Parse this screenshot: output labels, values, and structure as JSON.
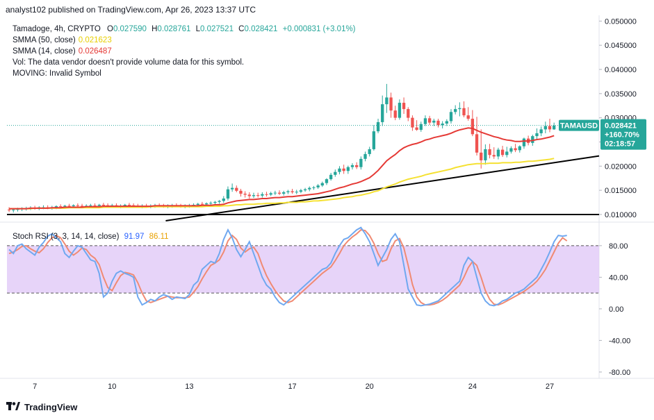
{
  "header": {
    "published": "analyst102 published on TradingView.com, Apr 26, 2023 13:37 UTC"
  },
  "legend": {
    "title": "Tamadoge, 4h, CRYPTO",
    "ohlc": {
      "open_label": "O",
      "open": "0.027590",
      "high_label": "H",
      "high": "0.028761",
      "low_label": "L",
      "low": "0.027521",
      "close_label": "C",
      "close": "0.028421",
      "change": "+0.000831 (+3.01%)"
    },
    "sma50_label": "SMMA (50, close)",
    "sma50_value": "0.021623",
    "sma14_label": "SMMA (14, close)",
    "sma14_value": "0.026487",
    "vol_text": "Vol: The data vendor doesn't provide volume data for this symbol.",
    "moving_text": "MOVING: Invalid Symbol"
  },
  "rsi_legend": {
    "label": "Stoch RSI (3, 3, 14, 14, close)",
    "k": "91.97",
    "d": "86.11"
  },
  "price_tag": {
    "symbol": "TAMAUSD",
    "price": "0.028421",
    "change": "+160.70%",
    "countdown": "02:18:57"
  },
  "footer": {
    "brand": "TradingView"
  },
  "colors": {
    "up": "#26a69a",
    "down": "#ef5350",
    "sma50": "#f5e132",
    "sma14": "#e53935",
    "k": "#6fa8f0",
    "d": "#f08a73",
    "band": "#e1c9f7"
  },
  "chart_data": [
    {
      "type": "candlestick",
      "title": "Tamadoge, 4h, CRYPTO",
      "y_ticks": [
        "0.010000",
        "0.015000",
        "0.020000",
        "0.025000",
        "0.030000",
        "0.035000",
        "0.040000",
        "0.045000",
        "0.050000"
      ],
      "ylim": [
        0.0087,
        0.0512
      ],
      "x_tick_labels": [
        "7",
        "10",
        "13",
        "17",
        "20",
        "24",
        "27"
      ],
      "x_tick_index": [
        6,
        24,
        42,
        66,
        84,
        108,
        126
      ],
      "x_count": 138,
      "last_price": 0.028421,
      "ohlc_open": [
        0.011,
        0.0109,
        0.011,
        0.0111,
        0.0112,
        0.0113,
        0.0114,
        0.0113,
        0.0115,
        0.0115,
        0.0114,
        0.0115,
        0.0117,
        0.0116,
        0.0118,
        0.0117,
        0.0119,
        0.0118,
        0.0117,
        0.0118,
        0.0119,
        0.0118,
        0.012,
        0.0119,
        0.0118,
        0.0119,
        0.0117,
        0.0118,
        0.012,
        0.0119,
        0.0118,
        0.0117,
        0.0118,
        0.0117,
        0.0118,
        0.0119,
        0.0118,
        0.0117,
        0.0118,
        0.0119,
        0.0118,
        0.0117,
        0.0118,
        0.0119,
        0.012,
        0.0122,
        0.0121,
        0.0123,
        0.0124,
        0.0126,
        0.0128,
        0.0133,
        0.0152,
        0.0155,
        0.0149,
        0.0143,
        0.0141,
        0.0138,
        0.014,
        0.0139,
        0.0142,
        0.0141,
        0.0144,
        0.0145,
        0.0143,
        0.0146,
        0.0148,
        0.0146,
        0.0147,
        0.015,
        0.0152,
        0.0155,
        0.0156,
        0.016,
        0.0165,
        0.0173,
        0.0182,
        0.0188,
        0.0195,
        0.019,
        0.0198,
        0.0202,
        0.0198,
        0.0215,
        0.0225,
        0.0235,
        0.0272,
        0.0291,
        0.0328,
        0.0342,
        0.0315,
        0.03,
        0.0331,
        0.0318,
        0.03,
        0.028,
        0.0275,
        0.0287,
        0.0299,
        0.029,
        0.0294,
        0.0285,
        0.0288,
        0.0293,
        0.0312,
        0.0318,
        0.032,
        0.0305,
        0.0298,
        0.0266,
        0.0228,
        0.0212,
        0.0235,
        0.0223,
        0.022,
        0.0234,
        0.0223,
        0.023,
        0.0237,
        0.0233,
        0.0241,
        0.0257,
        0.0248,
        0.0262,
        0.0268,
        0.0276,
        0.0283,
        0.0276
      ],
      "ohlc_high": [
        0.0115,
        0.0113,
        0.0114,
        0.0115,
        0.0116,
        0.0117,
        0.0118,
        0.0117,
        0.0119,
        0.0119,
        0.0118,
        0.0119,
        0.0121,
        0.012,
        0.0122,
        0.0121,
        0.0123,
        0.0122,
        0.0121,
        0.0122,
        0.0123,
        0.0122,
        0.0124,
        0.0123,
        0.0122,
        0.0123,
        0.0121,
        0.0122,
        0.0124,
        0.0123,
        0.0122,
        0.0121,
        0.0122,
        0.0121,
        0.0122,
        0.0123,
        0.0122,
        0.0121,
        0.0122,
        0.0123,
        0.0122,
        0.0121,
        0.0122,
        0.0123,
        0.0124,
        0.0126,
        0.0125,
        0.0127,
        0.0128,
        0.013,
        0.0138,
        0.0158,
        0.0164,
        0.016,
        0.0153,
        0.0148,
        0.0146,
        0.0145,
        0.0145,
        0.0146,
        0.0147,
        0.0147,
        0.0149,
        0.015,
        0.0149,
        0.0151,
        0.0153,
        0.0151,
        0.0153,
        0.0155,
        0.0158,
        0.0159,
        0.0163,
        0.0168,
        0.0175,
        0.0186,
        0.0193,
        0.02,
        0.0203,
        0.0201,
        0.0206,
        0.0208,
        0.022,
        0.023,
        0.024,
        0.0285,
        0.0298,
        0.0346,
        0.037,
        0.0352,
        0.0325,
        0.0338,
        0.0342,
        0.0322,
        0.0305,
        0.0295,
        0.0292,
        0.0305,
        0.0304,
        0.0298,
        0.0298,
        0.0293,
        0.0297,
        0.0318,
        0.0326,
        0.0332,
        0.0334,
        0.0322,
        0.0316,
        0.0302,
        0.0276,
        0.0245,
        0.0246,
        0.0239,
        0.0238,
        0.0242,
        0.024,
        0.0241,
        0.0246,
        0.0243,
        0.0259,
        0.0263,
        0.0265,
        0.0278,
        0.0282,
        0.0292,
        0.0298,
        0.029
      ],
      "ohlc_low": [
        0.0105,
        0.0104,
        0.0106,
        0.0107,
        0.0108,
        0.0109,
        0.011,
        0.0109,
        0.0111,
        0.0111,
        0.011,
        0.0111,
        0.0113,
        0.0112,
        0.0114,
        0.0113,
        0.0115,
        0.0114,
        0.0113,
        0.0114,
        0.0115,
        0.0114,
        0.0116,
        0.0115,
        0.0114,
        0.0115,
        0.0113,
        0.0114,
        0.0116,
        0.0115,
        0.0114,
        0.0113,
        0.0114,
        0.0113,
        0.0114,
        0.0115,
        0.0114,
        0.0113,
        0.0114,
        0.0115,
        0.0114,
        0.0113,
        0.0114,
        0.0115,
        0.0116,
        0.0118,
        0.0117,
        0.0119,
        0.012,
        0.0122,
        0.0124,
        0.0129,
        0.0147,
        0.0146,
        0.0137,
        0.0135,
        0.0133,
        0.0134,
        0.0135,
        0.0135,
        0.0137,
        0.0138,
        0.014,
        0.014,
        0.0139,
        0.0142,
        0.0143,
        0.0142,
        0.0144,
        0.0147,
        0.0148,
        0.0151,
        0.0153,
        0.0157,
        0.0161,
        0.017,
        0.0178,
        0.0183,
        0.0184,
        0.0184,
        0.0193,
        0.0194,
        0.0193,
        0.021,
        0.022,
        0.0232,
        0.0268,
        0.0283,
        0.031,
        0.03,
        0.0295,
        0.0296,
        0.0308,
        0.0293,
        0.0273,
        0.0273,
        0.0271,
        0.0283,
        0.0285,
        0.0283,
        0.028,
        0.0278,
        0.0283,
        0.0288,
        0.0307,
        0.0303,
        0.0301,
        0.0294,
        0.0262,
        0.0222,
        0.0195,
        0.0203,
        0.0216,
        0.0215,
        0.0214,
        0.0219,
        0.0218,
        0.0226,
        0.0229,
        0.0228,
        0.0236,
        0.0243,
        0.0242,
        0.0256,
        0.0262,
        0.0268,
        0.027,
        0.0275
      ],
      "ohlc_close": [
        0.0109,
        0.011,
        0.0111,
        0.0112,
        0.0113,
        0.0114,
        0.0113,
        0.0115,
        0.0115,
        0.0114,
        0.0115,
        0.0117,
        0.0116,
        0.0118,
        0.0117,
        0.0119,
        0.0118,
        0.0117,
        0.0118,
        0.0119,
        0.0118,
        0.012,
        0.0119,
        0.0118,
        0.0119,
        0.0117,
        0.0118,
        0.012,
        0.0119,
        0.0118,
        0.0117,
        0.0118,
        0.0117,
        0.0118,
        0.0119,
        0.0118,
        0.0117,
        0.0118,
        0.0119,
        0.0118,
        0.0117,
        0.0118,
        0.0119,
        0.012,
        0.0122,
        0.0121,
        0.0123,
        0.0124,
        0.0126,
        0.0128,
        0.0133,
        0.0152,
        0.0155,
        0.0149,
        0.0143,
        0.0141,
        0.0138,
        0.014,
        0.0139,
        0.0142,
        0.0141,
        0.0144,
        0.0145,
        0.0143,
        0.0146,
        0.0148,
        0.0146,
        0.0147,
        0.015,
        0.0152,
        0.0155,
        0.0156,
        0.016,
        0.0165,
        0.0173,
        0.0182,
        0.0188,
        0.0195,
        0.019,
        0.0198,
        0.0202,
        0.0198,
        0.0215,
        0.0225,
        0.0235,
        0.0272,
        0.0291,
        0.0328,
        0.0342,
        0.0315,
        0.03,
        0.0331,
        0.0318,
        0.03,
        0.028,
        0.0275,
        0.0287,
        0.0299,
        0.029,
        0.0294,
        0.0285,
        0.0288,
        0.0293,
        0.0312,
        0.0318,
        0.032,
        0.0305,
        0.0298,
        0.0266,
        0.0228,
        0.0212,
        0.0235,
        0.0223,
        0.022,
        0.0234,
        0.0223,
        0.023,
        0.0237,
        0.0233,
        0.0241,
        0.0257,
        0.0248,
        0.0262,
        0.0268,
        0.0276,
        0.0283,
        0.0276,
        0.0284
      ],
      "smma50": [
        0.0112,
        0.0112,
        0.0112,
        0.0112,
        0.0112,
        0.0112,
        0.0113,
        0.0113,
        0.0113,
        0.0113,
        0.0113,
        0.0113,
        0.0113,
        0.0113,
        0.0114,
        0.0114,
        0.0114,
        0.0114,
        0.0114,
        0.0114,
        0.0114,
        0.0114,
        0.0115,
        0.0115,
        0.0115,
        0.0115,
        0.0115,
        0.0115,
        0.0115,
        0.0115,
        0.0115,
        0.0115,
        0.0115,
        0.0116,
        0.0116,
        0.0116,
        0.0116,
        0.0116,
        0.0116,
        0.0116,
        0.0116,
        0.0116,
        0.0116,
        0.0116,
        0.0116,
        0.0116,
        0.0117,
        0.0117,
        0.0117,
        0.0117,
        0.0118,
        0.0118,
        0.0119,
        0.012,
        0.012,
        0.0121,
        0.0121,
        0.0121,
        0.0122,
        0.0122,
        0.0123,
        0.0123,
        0.0123,
        0.0124,
        0.0124,
        0.0125,
        0.0125,
        0.0125,
        0.0126,
        0.0126,
        0.0127,
        0.0128,
        0.0128,
        0.0129,
        0.013,
        0.0131,
        0.0132,
        0.0133,
        0.0135,
        0.0136,
        0.0137,
        0.0139,
        0.014,
        0.0142,
        0.0144,
        0.0147,
        0.0149,
        0.0153,
        0.0157,
        0.016,
        0.0163,
        0.0167,
        0.017,
        0.0173,
        0.0175,
        0.0177,
        0.0179,
        0.0182,
        0.0184,
        0.0186,
        0.0188,
        0.019,
        0.0192,
        0.0194,
        0.0197,
        0.0199,
        0.0201,
        0.0203,
        0.0204,
        0.0205,
        0.0205,
        0.0205,
        0.0206,
        0.0206,
        0.0206,
        0.0207,
        0.0207,
        0.0207,
        0.0208,
        0.0208,
        0.0209,
        0.021,
        0.021,
        0.0211,
        0.0212,
        0.0213,
        0.0214,
        0.0216
      ],
      "smma14": [
        0.0112,
        0.0112,
        0.0112,
        0.0112,
        0.0112,
        0.0113,
        0.0113,
        0.0113,
        0.0113,
        0.0113,
        0.0114,
        0.0114,
        0.0114,
        0.0115,
        0.0115,
        0.0115,
        0.0115,
        0.0115,
        0.0116,
        0.0116,
        0.0116,
        0.0116,
        0.0117,
        0.0117,
        0.0117,
        0.0117,
        0.0117,
        0.0117,
        0.0117,
        0.0117,
        0.0117,
        0.0117,
        0.0117,
        0.0117,
        0.0118,
        0.0118,
        0.0118,
        0.0118,
        0.0118,
        0.0118,
        0.0118,
        0.0118,
        0.0118,
        0.0118,
        0.0118,
        0.0119,
        0.0119,
        0.0119,
        0.012,
        0.012,
        0.0121,
        0.0124,
        0.0126,
        0.0128,
        0.0129,
        0.013,
        0.0131,
        0.0131,
        0.0132,
        0.0133,
        0.0133,
        0.0134,
        0.0135,
        0.0135,
        0.0136,
        0.0137,
        0.0137,
        0.0138,
        0.0139,
        0.014,
        0.0141,
        0.0142,
        0.0143,
        0.0145,
        0.0147,
        0.0149,
        0.0152,
        0.0155,
        0.0157,
        0.016,
        0.0163,
        0.0165,
        0.0168,
        0.0172,
        0.0176,
        0.0183,
        0.0191,
        0.0201,
        0.0211,
        0.0218,
        0.0224,
        0.0232,
        0.0238,
        0.0242,
        0.0245,
        0.0247,
        0.025,
        0.0254,
        0.0256,
        0.0259,
        0.0261,
        0.0263,
        0.0265,
        0.0268,
        0.0272,
        0.0275,
        0.0277,
        0.0279,
        0.0278,
        0.0274,
        0.027,
        0.0267,
        0.0264,
        0.0261,
        0.0259,
        0.0256,
        0.0254,
        0.0253,
        0.0251,
        0.0251,
        0.0252,
        0.0252,
        0.0253,
        0.0255,
        0.0256,
        0.0258,
        0.026,
        0.0263
      ],
      "trendlines": [
        {
          "x": [
            37,
            138
          ],
          "y": [
            0.0087,
            0.0221
          ]
        },
        {
          "x": [
            0,
            138
          ],
          "y": [
            0.01,
            0.01
          ]
        }
      ]
    },
    {
      "type": "line",
      "title": "Stoch RSI (3, 3, 14, 14, close)",
      "y_ticks": [
        "80.00",
        "40.00",
        "0.00",
        "-40.00",
        "-80.00"
      ],
      "ylim": [
        -88,
        108
      ],
      "band": [
        20,
        80
      ],
      "series": [
        {
          "name": "K",
          "values": [
            75,
            70,
            80,
            82,
            76,
            72,
            68,
            78,
            84,
            92,
            95,
            90,
            85,
            70,
            65,
            73,
            80,
            78,
            70,
            62,
            60,
            45,
            15,
            20,
            35,
            45,
            48,
            45,
            43,
            40,
            15,
            5,
            8,
            12,
            10,
            15,
            18,
            16,
            12,
            15,
            14,
            13,
            18,
            30,
            35,
            50,
            55,
            60,
            58,
            70,
            88,
            100,
            90,
            75,
            66,
            75,
            85,
            70,
            55,
            40,
            30,
            25,
            15,
            8,
            5,
            10,
            15,
            20,
            25,
            30,
            35,
            40,
            45,
            50,
            52,
            58,
            70,
            80,
            88,
            90,
            95,
            100,
            103,
            95,
            85,
            70,
            55,
            65,
            75,
            88,
            95,
            85,
            55,
            25,
            15,
            5,
            4,
            5,
            6,
            8,
            10,
            15,
            20,
            25,
            30,
            35,
            55,
            65,
            60,
            40,
            20,
            10,
            5,
            4,
            6,
            10,
            12,
            16,
            20,
            22,
            25,
            30,
            35,
            40,
            50,
            60,
            72,
            85,
            93,
            92,
            93
          ]
        },
        {
          "name": "D",
          "values": [
            70,
            72,
            75,
            79,
            80,
            76,
            73,
            71,
            76,
            84,
            90,
            93,
            90,
            82,
            73,
            68,
            72,
            77,
            75,
            68,
            64,
            56,
            40,
            27,
            23,
            33,
            42,
            46,
            45,
            43,
            33,
            20,
            10,
            8,
            10,
            12,
            14,
            16,
            15,
            14,
            14,
            14,
            15,
            21,
            28,
            38,
            47,
            55,
            58,
            62,
            72,
            86,
            93,
            88,
            77,
            72,
            76,
            78,
            70,
            55,
            42,
            32,
            23,
            16,
            10,
            8,
            10,
            15,
            20,
            25,
            30,
            35,
            40,
            45,
            49,
            53,
            61,
            70,
            80,
            86,
            91,
            95,
            100,
            99,
            93,
            83,
            70,
            60,
            62,
            76,
            86,
            89,
            77,
            55,
            31,
            15,
            8,
            5,
            5,
            6,
            8,
            11,
            15,
            20,
            25,
            30,
            40,
            52,
            60,
            55,
            40,
            23,
            12,
            6,
            5,
            7,
            10,
            13,
            16,
            19,
            22,
            26,
            30,
            35,
            42,
            50,
            61,
            72,
            83,
            90,
            86
          ]
        }
      ],
      "k_last": 91.97,
      "d_last": 86.11
    }
  ]
}
